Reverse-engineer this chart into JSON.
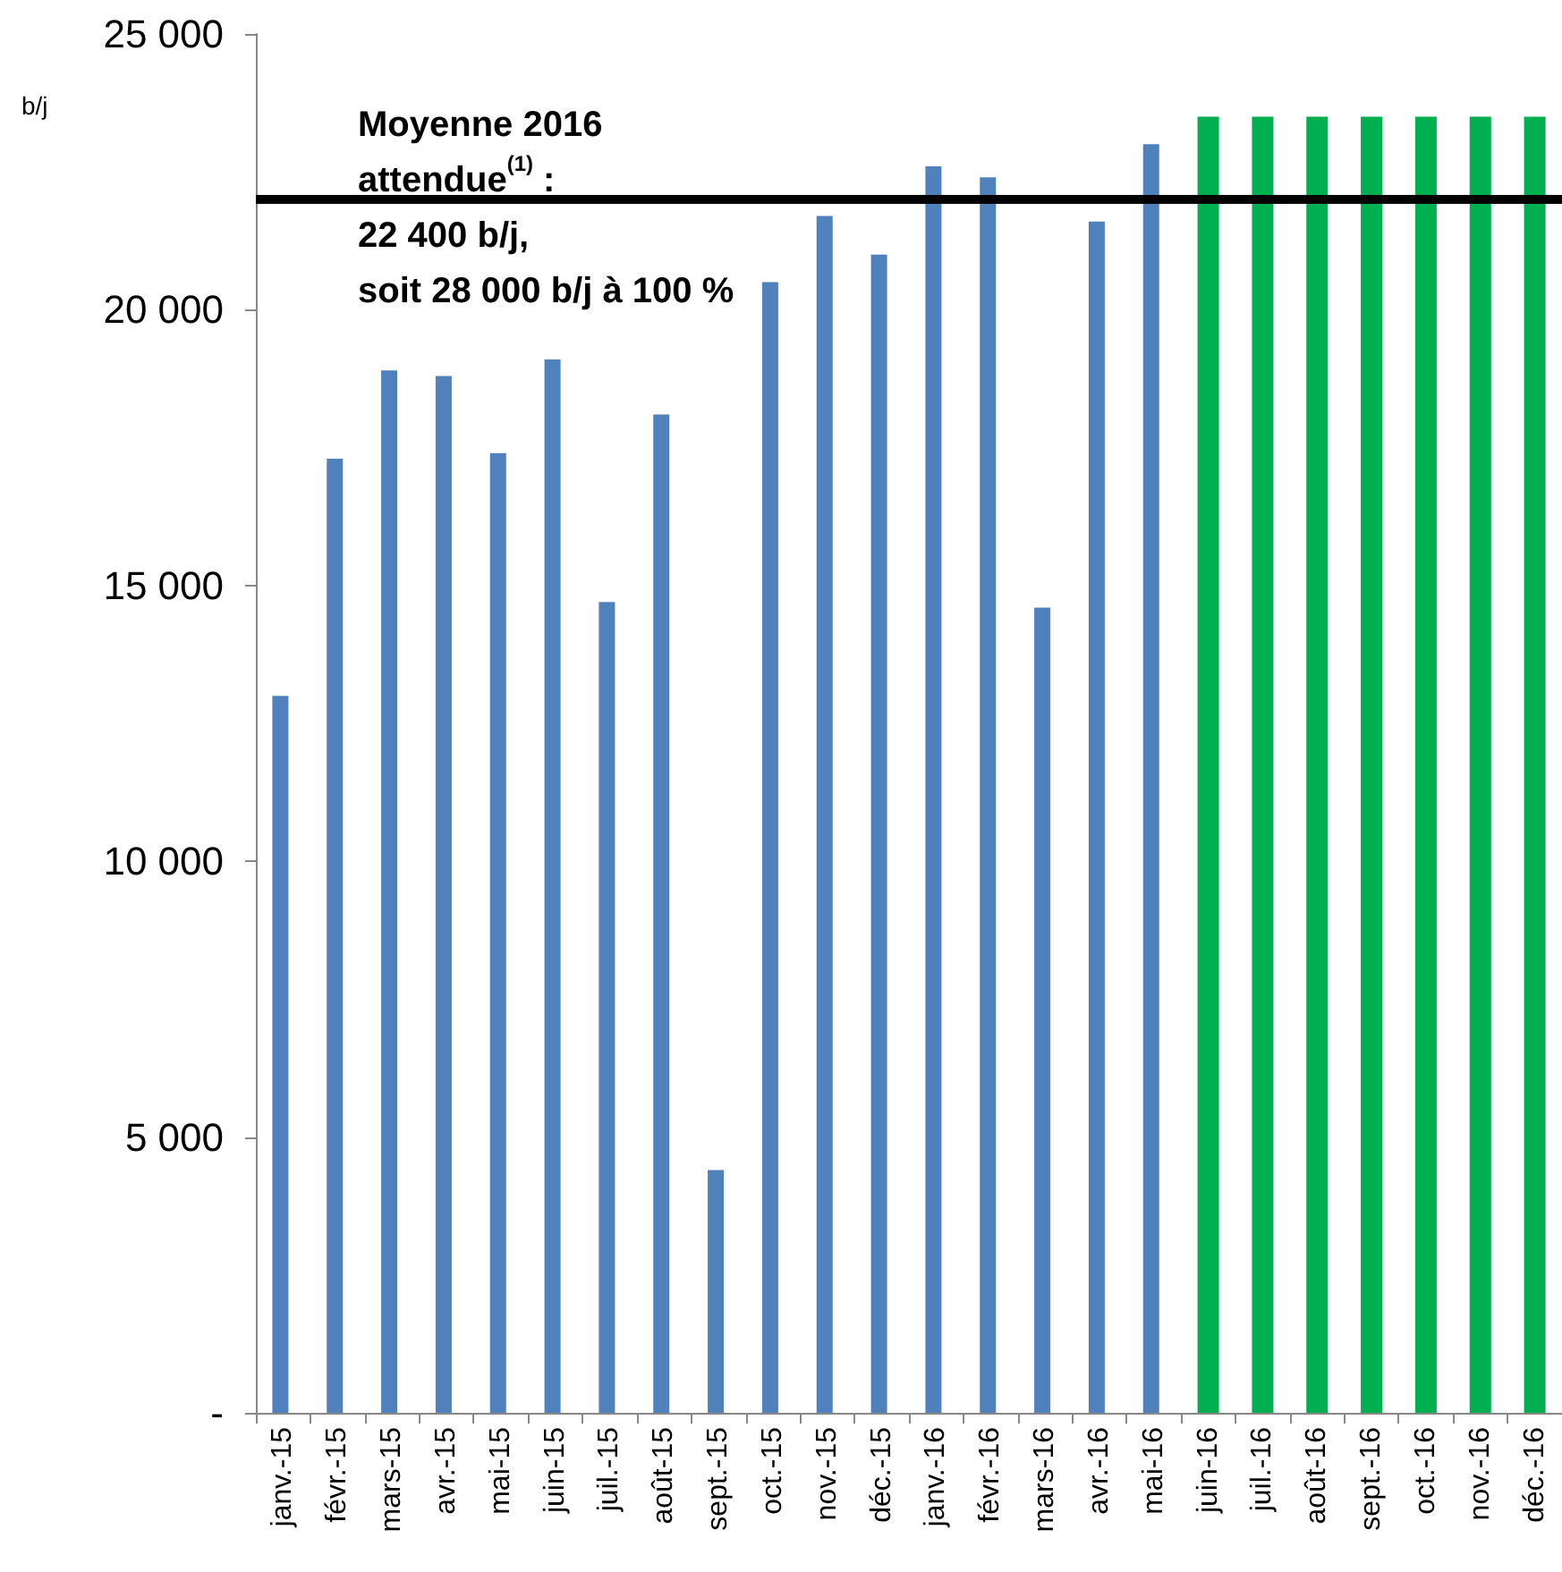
{
  "chart_data": {
    "type": "bar",
    "ylabel": "b/j",
    "categories": [
      "janv.-15",
      "févr.-15",
      "mars-15",
      "avr.-15",
      "mai-15",
      "juin-15",
      "juil.-15",
      "août-15",
      "sept.-15",
      "oct.-15",
      "nov.-15",
      "déc.-15",
      "janv.-16",
      "févr.-16",
      "mars-16",
      "avr.-16",
      "mai-16",
      "juin-16",
      "juil.-16",
      "août-16",
      "sept.-16",
      "oct.-16",
      "nov.-16",
      "déc.-16"
    ],
    "series": [
      {
        "color": "#4f81bd",
        "values": [
          13000,
          17300,
          18900,
          18800,
          17400,
          19100,
          14700,
          18100,
          4400,
          20500,
          21700,
          21000,
          22600,
          22400,
          14600,
          21600,
          23000,
          null,
          null,
          null,
          null,
          null,
          null,
          null
        ]
      },
      {
        "color": "#00b050",
        "values": [
          null,
          null,
          null,
          null,
          null,
          null,
          null,
          null,
          null,
          null,
          null,
          null,
          null,
          null,
          null,
          null,
          null,
          23500,
          23500,
          23500,
          23500,
          23500,
          23500,
          23500
        ]
      }
    ],
    "ylim": [
      0,
      25000
    ],
    "yticks": [
      {
        "value": 0,
        "label": "-"
      },
      {
        "value": 5000,
        "label": "5 000"
      },
      {
        "value": 10000,
        "label": "10 000"
      },
      {
        "value": 15000,
        "label": "15 000"
      },
      {
        "value": 20000,
        "label": "20 000"
      },
      {
        "value": 25000,
        "label": "25 000"
      }
    ],
    "ref_lines": [
      {
        "axis": "y",
        "value": 22000,
        "color": "#000000"
      }
    ],
    "annotations": [
      "Moyenne 2016\nattendue$^{(1)}$ :\n22 400 b/j,\nsoit 28 000 b/j à 100 %"
    ],
    "grid": false
  }
}
